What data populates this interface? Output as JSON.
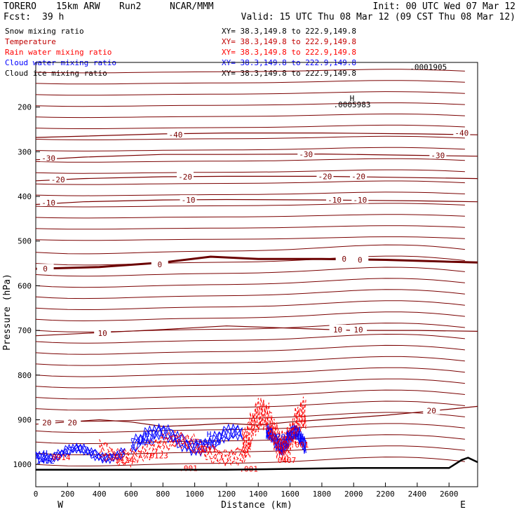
{
  "header": {
    "model": "TORERO",
    "resolution": "15km ARW",
    "run": "Run2",
    "org": "NCAR/MMM",
    "init": "Init: 00 UTC Wed 07 Mar 12",
    "fcst_label": "Fcst:",
    "fcst_value": "39 h",
    "valid": "Valid: 15 UTC Thu 08 Mar 12 (09 CST Thu 08 Mar 12)"
  },
  "legend": [
    {
      "label": "Snow mixing ratio",
      "xy": "XY= 38.3,149.8 to 222.9,149.8",
      "color": "#000000"
    },
    {
      "label": "Temperature",
      "xy": "XY= 38.3,149.8 to 222.9,149.8",
      "color": "#c00000"
    },
    {
      "label": "Rain water mixing ratio",
      "xy": "XY= 38.3,149.8 to 222.9,149.8",
      "color": "#ff0000"
    },
    {
      "label": "Cloud water mixing ratio",
      "xy": "XY= 38.3,149.8 to 222.9,149.8",
      "color": "#0000ff"
    },
    {
      "label": "Cloud ice mixing ratio",
      "xy": "XY= 38.3,149.8 to 222.9,149.8",
      "color": "#000000"
    }
  ],
  "colors": {
    "temperature": "#7a0000",
    "temperature_zero": "#6b0000",
    "rain": "#ff0000",
    "cloud_water": "#0000ff",
    "terrain": "#000000"
  },
  "chart_data": {
    "type": "line",
    "xlabel": "Distance (km)",
    "ylabel": "Pressure (hPa)",
    "xlim": [
      0,
      2780
    ],
    "ylim": [
      100,
      1050
    ],
    "x_ticks": [
      0,
      200,
      400,
      600,
      800,
      1000,
      1200,
      1400,
      1600,
      1800,
      2000,
      2200,
      2400,
      2600
    ],
    "y_ticks": [
      200,
      300,
      400,
      500,
      600,
      700,
      800,
      900,
      1000
    ],
    "endpoint_labels": {
      "left": "W",
      "right": "E"
    },
    "temperature_contours": [
      {
        "value": -40,
        "points": [
          [
            0,
            268
          ],
          [
            300,
            265
          ],
          [
            800,
            260
          ],
          [
            1200,
            258
          ],
          [
            1800,
            258
          ],
          [
            2400,
            260
          ],
          [
            2780,
            262
          ]
        ]
      },
      {
        "value": -30,
        "points": [
          [
            0,
            318
          ],
          [
            300,
            312
          ],
          [
            800,
            306
          ],
          [
            1200,
            306
          ],
          [
            1800,
            305
          ],
          [
            2400,
            308
          ],
          [
            2780,
            310
          ]
        ]
      },
      {
        "value": -20,
        "points": [
          [
            0,
            365
          ],
          [
            300,
            360
          ],
          [
            800,
            356
          ],
          [
            1200,
            355
          ],
          [
            1800,
            355
          ],
          [
            2400,
            358
          ],
          [
            2780,
            360
          ]
        ]
      },
      {
        "value": -10,
        "points": [
          [
            0,
            418
          ],
          [
            300,
            412
          ],
          [
            800,
            408
          ],
          [
            1200,
            407
          ],
          [
            1800,
            408
          ],
          [
            2400,
            410
          ],
          [
            2780,
            412
          ]
        ]
      },
      {
        "value": 0,
        "points": [
          [
            0,
            562
          ],
          [
            400,
            558
          ],
          [
            800,
            548
          ],
          [
            1100,
            535
          ],
          [
            1400,
            540
          ],
          [
            1800,
            540
          ],
          [
            2200,
            542
          ],
          [
            2780,
            548
          ]
        ]
      },
      {
        "value": 10,
        "points": [
          [
            0,
            712
          ],
          [
            400,
            705
          ],
          [
            800,
            698
          ],
          [
            1200,
            690
          ],
          [
            1600,
            695
          ],
          [
            2000,
            700
          ],
          [
            2400,
            700
          ],
          [
            2780,
            702
          ]
        ]
      },
      {
        "value": 20,
        "points": [
          [
            0,
            910
          ],
          [
            200,
            905
          ],
          [
            400,
            900
          ],
          [
            600,
            905
          ],
          [
            800,
            915
          ],
          [
            1000,
            912
          ],
          [
            1200,
            908
          ],
          [
            1400,
            912
          ],
          [
            1600,
            905
          ],
          [
            1800,
            900
          ],
          [
            2200,
            890
          ],
          [
            2500,
            880
          ],
          [
            2780,
            870
          ]
        ]
      }
    ],
    "contour_labels": [
      {
        "text": "-40",
        "x": 880,
        "y": 262
      },
      {
        "text": "-40",
        "x": 2680,
        "y": 258
      },
      {
        "text": "-30",
        "x": 80,
        "y": 314
      },
      {
        "text": "-30",
        "x": 1700,
        "y": 306
      },
      {
        "text": "-30",
        "x": 2530,
        "y": 308
      },
      {
        "text": "-20",
        "x": 140,
        "y": 362
      },
      {
        "text": "-20",
        "x": 940,
        "y": 356
      },
      {
        "text": "-20",
        "x": 1820,
        "y": 355
      },
      {
        "text": "-20",
        "x": 2030,
        "y": 355
      },
      {
        "text": "-10",
        "x": 80,
        "y": 414
      },
      {
        "text": "-10",
        "x": 960,
        "y": 408
      },
      {
        "text": "-10",
        "x": 1880,
        "y": 408
      },
      {
        "text": "-10",
        "x": 2040,
        "y": 408
      },
      {
        "text": "0",
        "x": 60,
        "y": 562
      },
      {
        "text": "0",
        "x": 780,
        "y": 552
      },
      {
        "text": "0",
        "x": 1940,
        "y": 540
      },
      {
        "text": "0",
        "x": 2040,
        "y": 542
      },
      {
        "text": "10",
        "x": 420,
        "y": 706
      },
      {
        "text": "10",
        "x": 1900,
        "y": 698
      },
      {
        "text": "10",
        "x": 2030,
        "y": 698
      },
      {
        "text": "20",
        "x": 70,
        "y": 906
      },
      {
        "text": "20",
        "x": 230,
        "y": 906
      },
      {
        "text": "20",
        "x": 2490,
        "y": 880
      }
    ],
    "extrema_labels": [
      {
        "text": "H",
        "x": 1990,
        "y": 180,
        "color": "#000000"
      },
      {
        "text": ".0005983",
        "x": 1990,
        "y": 194,
        "color": "#000000"
      },
      {
        "text": ".0001905",
        "x": 2470,
        "y": 110,
        "color": "#000000"
      },
      {
        "text": "H",
        "x": 60,
        "y": 975,
        "color": "#0000ff"
      },
      {
        "text": "1452",
        "x": 60,
        "y": 992,
        "color": "#0000ff"
      },
      {
        "text": "0914",
        "x": 160,
        "y": 984,
        "color": "#ff0000"
      },
      {
        "text": "H",
        "x": 700,
        "y": 932,
        "color": "#0000ff"
      },
      {
        "text": "3265",
        "x": 690,
        "y": 949,
        "color": "#0000ff"
      },
      {
        "text": "3124",
        "x": 560,
        "y": 990,
        "color": "#ff0000"
      },
      {
        "text": "H",
        "x": 1090,
        "y": 932,
        "color": "#0000ff"
      },
      {
        "text": "358269",
        "x": 1080,
        "y": 950,
        "color": "#0000ff"
      },
      {
        "text": "0311",
        "x": 1080,
        "y": 966,
        "color": "#ff0000"
      },
      {
        "text": ".0123",
        "x": 760,
        "y": 980,
        "color": "#ff0000"
      },
      {
        "text": "H",
        "x": 1590,
        "y": 930,
        "color": "#0000ff"
      },
      {
        "text": "202387",
        "x": 1600,
        "y": 938,
        "color": "#0000ff"
      },
      {
        "text": ".001",
        "x": 1660,
        "y": 956,
        "color": "#ff0000"
      },
      {
        "text": "0407",
        "x": 1580,
        "y": 990,
        "color": "#ff0000"
      },
      {
        "text": ".001",
        "x": 960,
        "y": 1008,
        "color": "#ff0000"
      },
      {
        "text": ".001",
        "x": 1340,
        "y": 1010,
        "color": "#ff0000"
      }
    ],
    "terrain_surface": [
      [
        0,
        1012
      ],
      [
        400,
        1012
      ],
      [
        800,
        1012
      ],
      [
        1200,
        1012
      ],
      [
        1600,
        1010
      ],
      [
        2000,
        1008
      ],
      [
        2400,
        1008
      ],
      [
        2600,
        1008
      ],
      [
        2680,
        990
      ],
      [
        2720,
        985
      ],
      [
        2780,
        995
      ]
    ],
    "grid": false,
    "legend_placement": "top-left"
  }
}
